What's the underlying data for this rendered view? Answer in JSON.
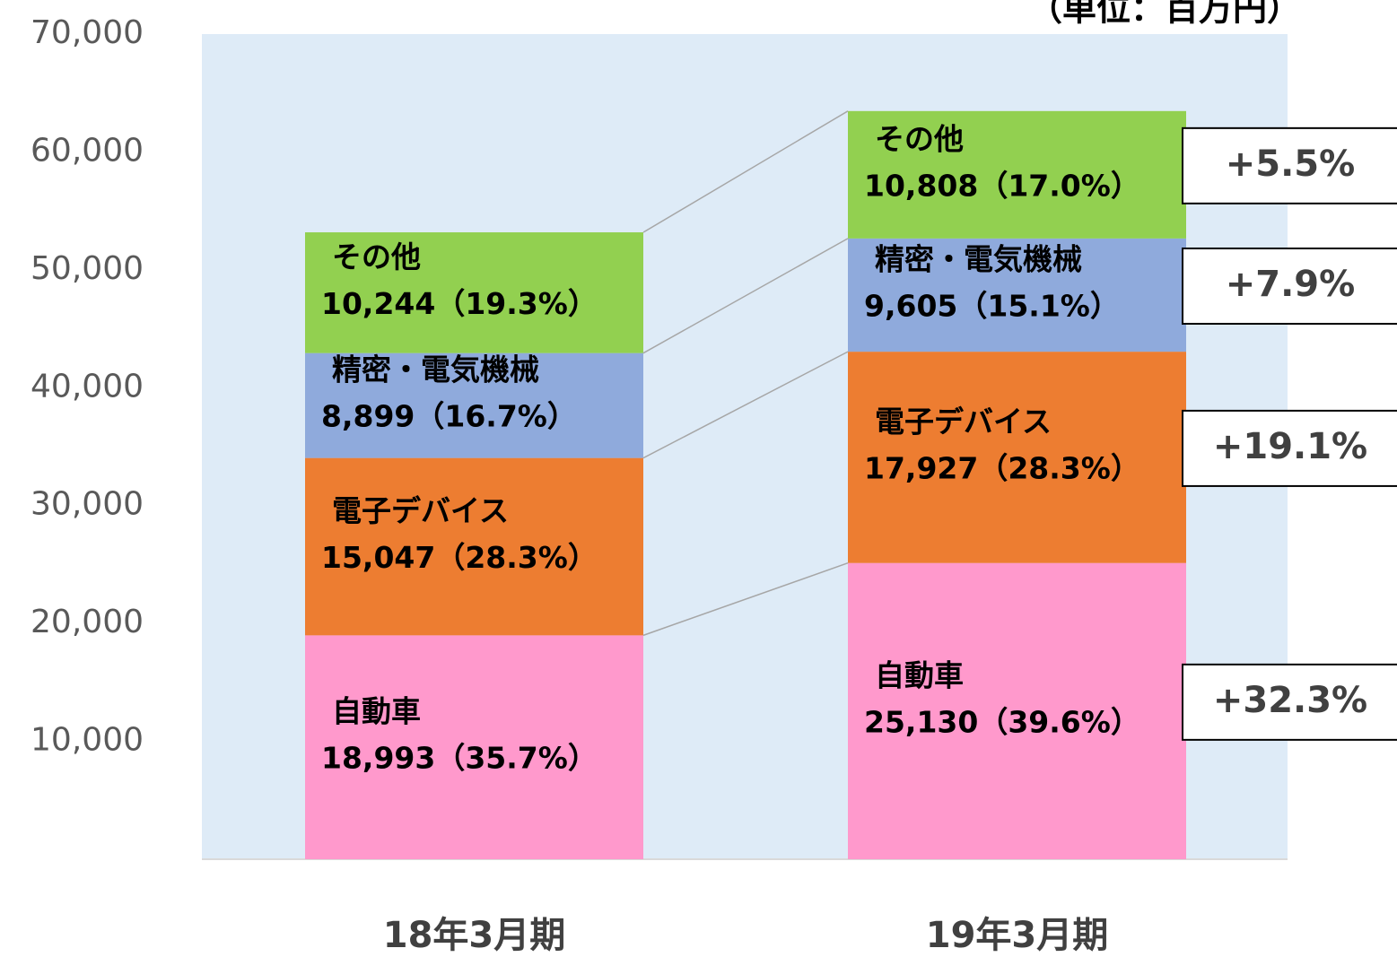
{
  "chart_data": {
    "type": "stacked_bar",
    "subtitle": "（単位：百万円）",
    "categories": [
      "18年3月期",
      "19年3月期"
    ],
    "series": [
      {
        "name": "自動車",
        "color": "#ff99cc",
        "values": [
          18993,
          25130
        ],
        "value_labels": [
          "18,993（35.7%）",
          "25,130（39.6%）"
        ],
        "change_label": "+32.3%"
      },
      {
        "name": "電子デバイス",
        "color": "#ed7d31",
        "values": [
          15047,
          17927
        ],
        "value_labels": [
          "15,047（28.3%）",
          "17,927（28.3%）"
        ],
        "change_label": "+19.1%"
      },
      {
        "name": "精密・電気機械",
        "color": "#8faadc",
        "values": [
          8899,
          9605
        ],
        "value_labels": [
          "8,899（16.7%）",
          "9,605（15.1%）"
        ],
        "change_label": "+7.9%"
      },
      {
        "name": "その他",
        "color": "#92d050",
        "values": [
          10244,
          10808
        ],
        "value_labels": [
          "10,244（19.3%）",
          "10,808（17.0%）"
        ],
        "change_label": "+5.5%"
      }
    ],
    "ylim": [
      0,
      70000
    ],
    "yticks": [
      {
        "value": 10000,
        "label": "10,000"
      },
      {
        "value": 20000,
        "label": "20,000"
      },
      {
        "value": 30000,
        "label": "30,000"
      },
      {
        "value": 40000,
        "label": "40,000"
      },
      {
        "value": 50000,
        "label": "50,000"
      },
      {
        "value": 60000,
        "label": "60,000"
      },
      {
        "value": 70000,
        "label": "70,000"
      }
    ],
    "plot_background": "#deebf7"
  }
}
